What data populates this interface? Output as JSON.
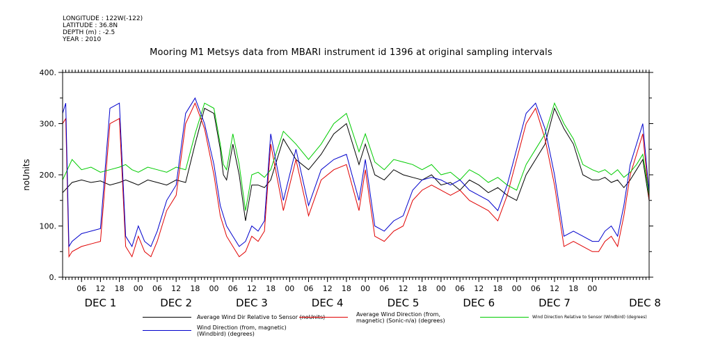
{
  "header": {
    "meta_lines": [
      "LONGITUDE : 122W(-122)",
      "LATITUDE : 36.8N",
      "DEPTH (m) : -2.5",
      "YEAR : 2010"
    ],
    "title": "Mooring M1 Metsys data from MBARI instrument id 1396 at original sampling intervals"
  },
  "chart_data": {
    "type": "line",
    "title": "Mooring M1 Metsys data from MBARI instrument id 1396 at original sampling intervals",
    "ylabel": "noUnits",
    "ylim": [
      0,
      400
    ],
    "yticks": [
      0,
      100,
      200,
      300,
      400
    ],
    "xlim_hours": [
      0,
      186
    ],
    "x_units": "hours after DEC 1 00:00 (2010)",
    "xtick_labels": [
      "06",
      "12",
      "18",
      "00",
      "06",
      "12",
      "18",
      "00",
      "06",
      "12",
      "18",
      "00",
      "06",
      "12",
      "18",
      "00",
      "06",
      "12",
      "18",
      "00",
      "06",
      "12",
      "18",
      "00",
      "06",
      "12",
      "18",
      "00"
    ],
    "day_labels": [
      "DEC 1",
      "DEC 2",
      "DEC 3",
      "DEC 4",
      "DEC 5",
      "DEC 6",
      "DEC 7",
      "DEC 8"
    ],
    "grid": false,
    "legend_position": "bottom",
    "series": [
      {
        "name": "Average Wind Dir Relative to Sensor (noUnits)",
        "color": "#000000",
        "x": [
          0,
          3,
          6,
          9,
          12,
          15,
          18,
          20,
          22,
          24,
          27,
          30,
          33,
          36,
          39,
          42,
          45,
          48,
          50,
          51,
          52,
          54,
          56,
          58,
          60,
          62,
          64,
          66,
          70,
          74,
          78,
          82,
          86,
          90,
          94,
          96,
          99,
          102,
          105,
          108,
          111,
          114,
          117,
          120,
          123,
          126,
          129,
          132,
          135,
          138,
          141,
          144,
          147,
          150,
          153,
          156,
          159,
          162,
          165,
          168,
          170,
          172,
          174,
          176,
          178,
          180,
          182,
          184,
          186
        ],
        "y": [
          165,
          185,
          190,
          185,
          188,
          180,
          185,
          190,
          185,
          180,
          190,
          185,
          180,
          190,
          185,
          260,
          330,
          320,
          250,
          200,
          190,
          260,
          200,
          110,
          180,
          180,
          175,
          190,
          270,
          230,
          210,
          240,
          280,
          300,
          220,
          260,
          200,
          190,
          210,
          200,
          195,
          190,
          200,
          180,
          185,
          170,
          190,
          180,
          165,
          175,
          160,
          150,
          200,
          230,
          260,
          330,
          290,
          260,
          200,
          190,
          190,
          195,
          185,
          190,
          175,
          190,
          210,
          230,
          150
        ]
      },
      {
        "name": "Average Wind Direction (from, magnetic) (Sonic-n/a) (degrees)",
        "color": "#e00000",
        "x": [
          0,
          1,
          2,
          3,
          6,
          9,
          12,
          15,
          18,
          20,
          22,
          24,
          26,
          28,
          30,
          33,
          36,
          39,
          42,
          45,
          48,
          50,
          52,
          54,
          56,
          58,
          60,
          62,
          64,
          66,
          70,
          74,
          78,
          82,
          86,
          90,
          94,
          96,
          99,
          102,
          105,
          108,
          111,
          114,
          117,
          120,
          123,
          126,
          129,
          132,
          135,
          138,
          141,
          144,
          147,
          150,
          153,
          156,
          159,
          162,
          165,
          168,
          170,
          172,
          174,
          176,
          178,
          180,
          182,
          184,
          186
        ],
        "y": [
          300,
          310,
          40,
          50,
          60,
          65,
          70,
          300,
          310,
          60,
          40,
          80,
          50,
          40,
          70,
          130,
          160,
          300,
          340,
          290,
          200,
          120,
          80,
          60,
          40,
          50,
          80,
          70,
          90,
          260,
          130,
          230,
          120,
          190,
          210,
          220,
          130,
          210,
          80,
          70,
          90,
          100,
          150,
          170,
          180,
          170,
          160,
          170,
          150,
          140,
          130,
          110,
          160,
          230,
          300,
          330,
          270,
          180,
          60,
          70,
          60,
          50,
          50,
          70,
          80,
          60,
          120,
          200,
          240,
          280,
          150
        ]
      },
      {
        "name": "Wind Direction Relative to Sensor (Windbird) (degrees)",
        "color": "#00cc00",
        "x": [
          0,
          3,
          6,
          9,
          12,
          15,
          18,
          20,
          22,
          24,
          27,
          30,
          33,
          36,
          39,
          42,
          45,
          48,
          50,
          51,
          52,
          54,
          56,
          58,
          60,
          62,
          64,
          66,
          70,
          74,
          78,
          82,
          86,
          90,
          94,
          96,
          99,
          102,
          105,
          108,
          111,
          114,
          117,
          120,
          123,
          126,
          129,
          132,
          135,
          138,
          141,
          144,
          147,
          150,
          153,
          156,
          159,
          162,
          165,
          168,
          170,
          172,
          174,
          176,
          178,
          180,
          182,
          184,
          186
        ],
        "y": [
          190,
          230,
          210,
          215,
          205,
          210,
          215,
          220,
          210,
          205,
          215,
          210,
          205,
          215,
          210,
          280,
          340,
          330,
          260,
          220,
          210,
          280,
          220,
          130,
          200,
          205,
          195,
          210,
          285,
          260,
          230,
          260,
          300,
          320,
          245,
          280,
          225,
          210,
          230,
          225,
          220,
          210,
          220,
          200,
          205,
          190,
          210,
          200,
          185,
          195,
          180,
          170,
          220,
          250,
          280,
          340,
          300,
          270,
          220,
          210,
          205,
          210,
          200,
          210,
          195,
          205,
          220,
          240,
          160
        ]
      },
      {
        "name": "Wind Direction (from, magnetic) (Windbird) (degrees)",
        "color": "#0000cc",
        "x": [
          0,
          1,
          2,
          3,
          6,
          9,
          12,
          15,
          18,
          20,
          22,
          24,
          26,
          28,
          30,
          33,
          36,
          39,
          42,
          45,
          48,
          50,
          52,
          54,
          56,
          58,
          60,
          62,
          64,
          66,
          70,
          74,
          78,
          82,
          86,
          90,
          94,
          96,
          99,
          102,
          105,
          108,
          111,
          114,
          117,
          120,
          123,
          126,
          129,
          132,
          135,
          138,
          141,
          144,
          147,
          150,
          153,
          156,
          159,
          162,
          165,
          168,
          170,
          172,
          174,
          176,
          178,
          180,
          182,
          184,
          186
        ],
        "y": [
          320,
          340,
          60,
          70,
          85,
          90,
          95,
          330,
          340,
          80,
          60,
          100,
          70,
          60,
          90,
          150,
          180,
          320,
          350,
          300,
          220,
          140,
          100,
          80,
          60,
          70,
          100,
          90,
          110,
          280,
          150,
          250,
          140,
          210,
          230,
          240,
          150,
          230,
          100,
          90,
          110,
          120,
          170,
          190,
          195,
          190,
          180,
          190,
          170,
          160,
          150,
          130,
          180,
          250,
          320,
          340,
          290,
          200,
          80,
          90,
          80,
          70,
          70,
          90,
          100,
          80,
          140,
          220,
          260,
          300,
          165
        ]
      }
    ]
  }
}
